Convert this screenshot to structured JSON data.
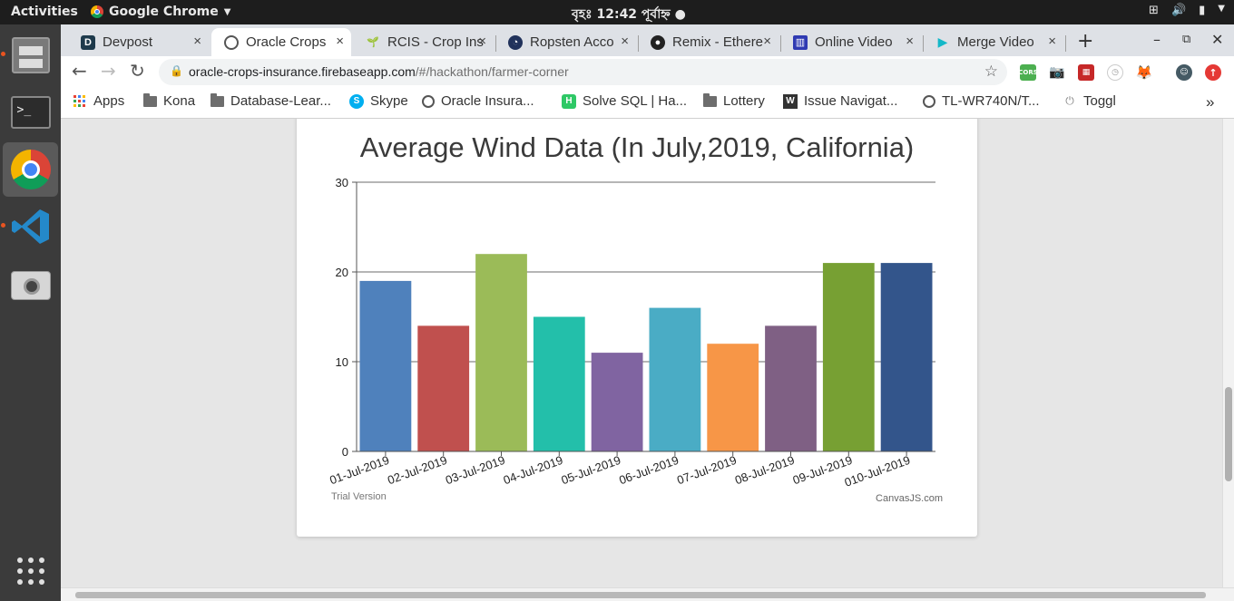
{
  "system": {
    "activities": "Activities",
    "app_name": "Google Chrome",
    "clock": "বৃহঃ 12:42 পূর্বাহ্ন ●"
  },
  "tabs": [
    {
      "title": "Devpost",
      "close": "×"
    },
    {
      "title": "Oracle Crops",
      "close": "×"
    },
    {
      "title": "RCIS - Crop Ins",
      "close": "×"
    },
    {
      "title": "Ropsten Acco",
      "close": "×"
    },
    {
      "title": "Remix - Ethere",
      "close": "×"
    },
    {
      "title": "Online Video",
      "close": "×"
    },
    {
      "title": "Merge Video",
      "close": "×"
    }
  ],
  "omnibox": {
    "host": "oracle-crops-insurance.firebaseapp.com",
    "path": "/#/hackathon/farmer-corner"
  },
  "bookmarks": [
    "Apps",
    "Kona",
    "Database-Lear...",
    "Skype",
    "Oracle Insura...",
    "Solve SQL | Ha...",
    "Lottery",
    "Issue Navigat...",
    "TL-WR740N/T...",
    "Toggl"
  ],
  "extensions": {
    "cors": "CORS"
  },
  "chart_data": {
    "type": "bar",
    "title": "Average Wind Data (In July,2019, California)",
    "categories": [
      "01-Jul-2019",
      "02-Jul-2019",
      "03-Jul-2019",
      "04-Jul-2019",
      "05-Jul-2019",
      "06-Jul-2019",
      "07-Jul-2019",
      "08-Jul-2019",
      "09-Jul-2019",
      "010-Jul-2019"
    ],
    "values": [
      19,
      14,
      22,
      15,
      11,
      16,
      12,
      14,
      21,
      21
    ],
    "colors": [
      "#4f81bc",
      "#c0504e",
      "#9bbb58",
      "#23bfaa",
      "#8064a1",
      "#4aacc5",
      "#f79647",
      "#7f6084",
      "#77a033",
      "#33558b"
    ],
    "ylim": [
      0,
      30
    ],
    "yticks": [
      0,
      10,
      20,
      30
    ],
    "grid": true,
    "xlabel": "",
    "ylabel": ""
  },
  "chart_footer": {
    "trial": "Trial Version",
    "credit": "CanvasJS.com"
  }
}
